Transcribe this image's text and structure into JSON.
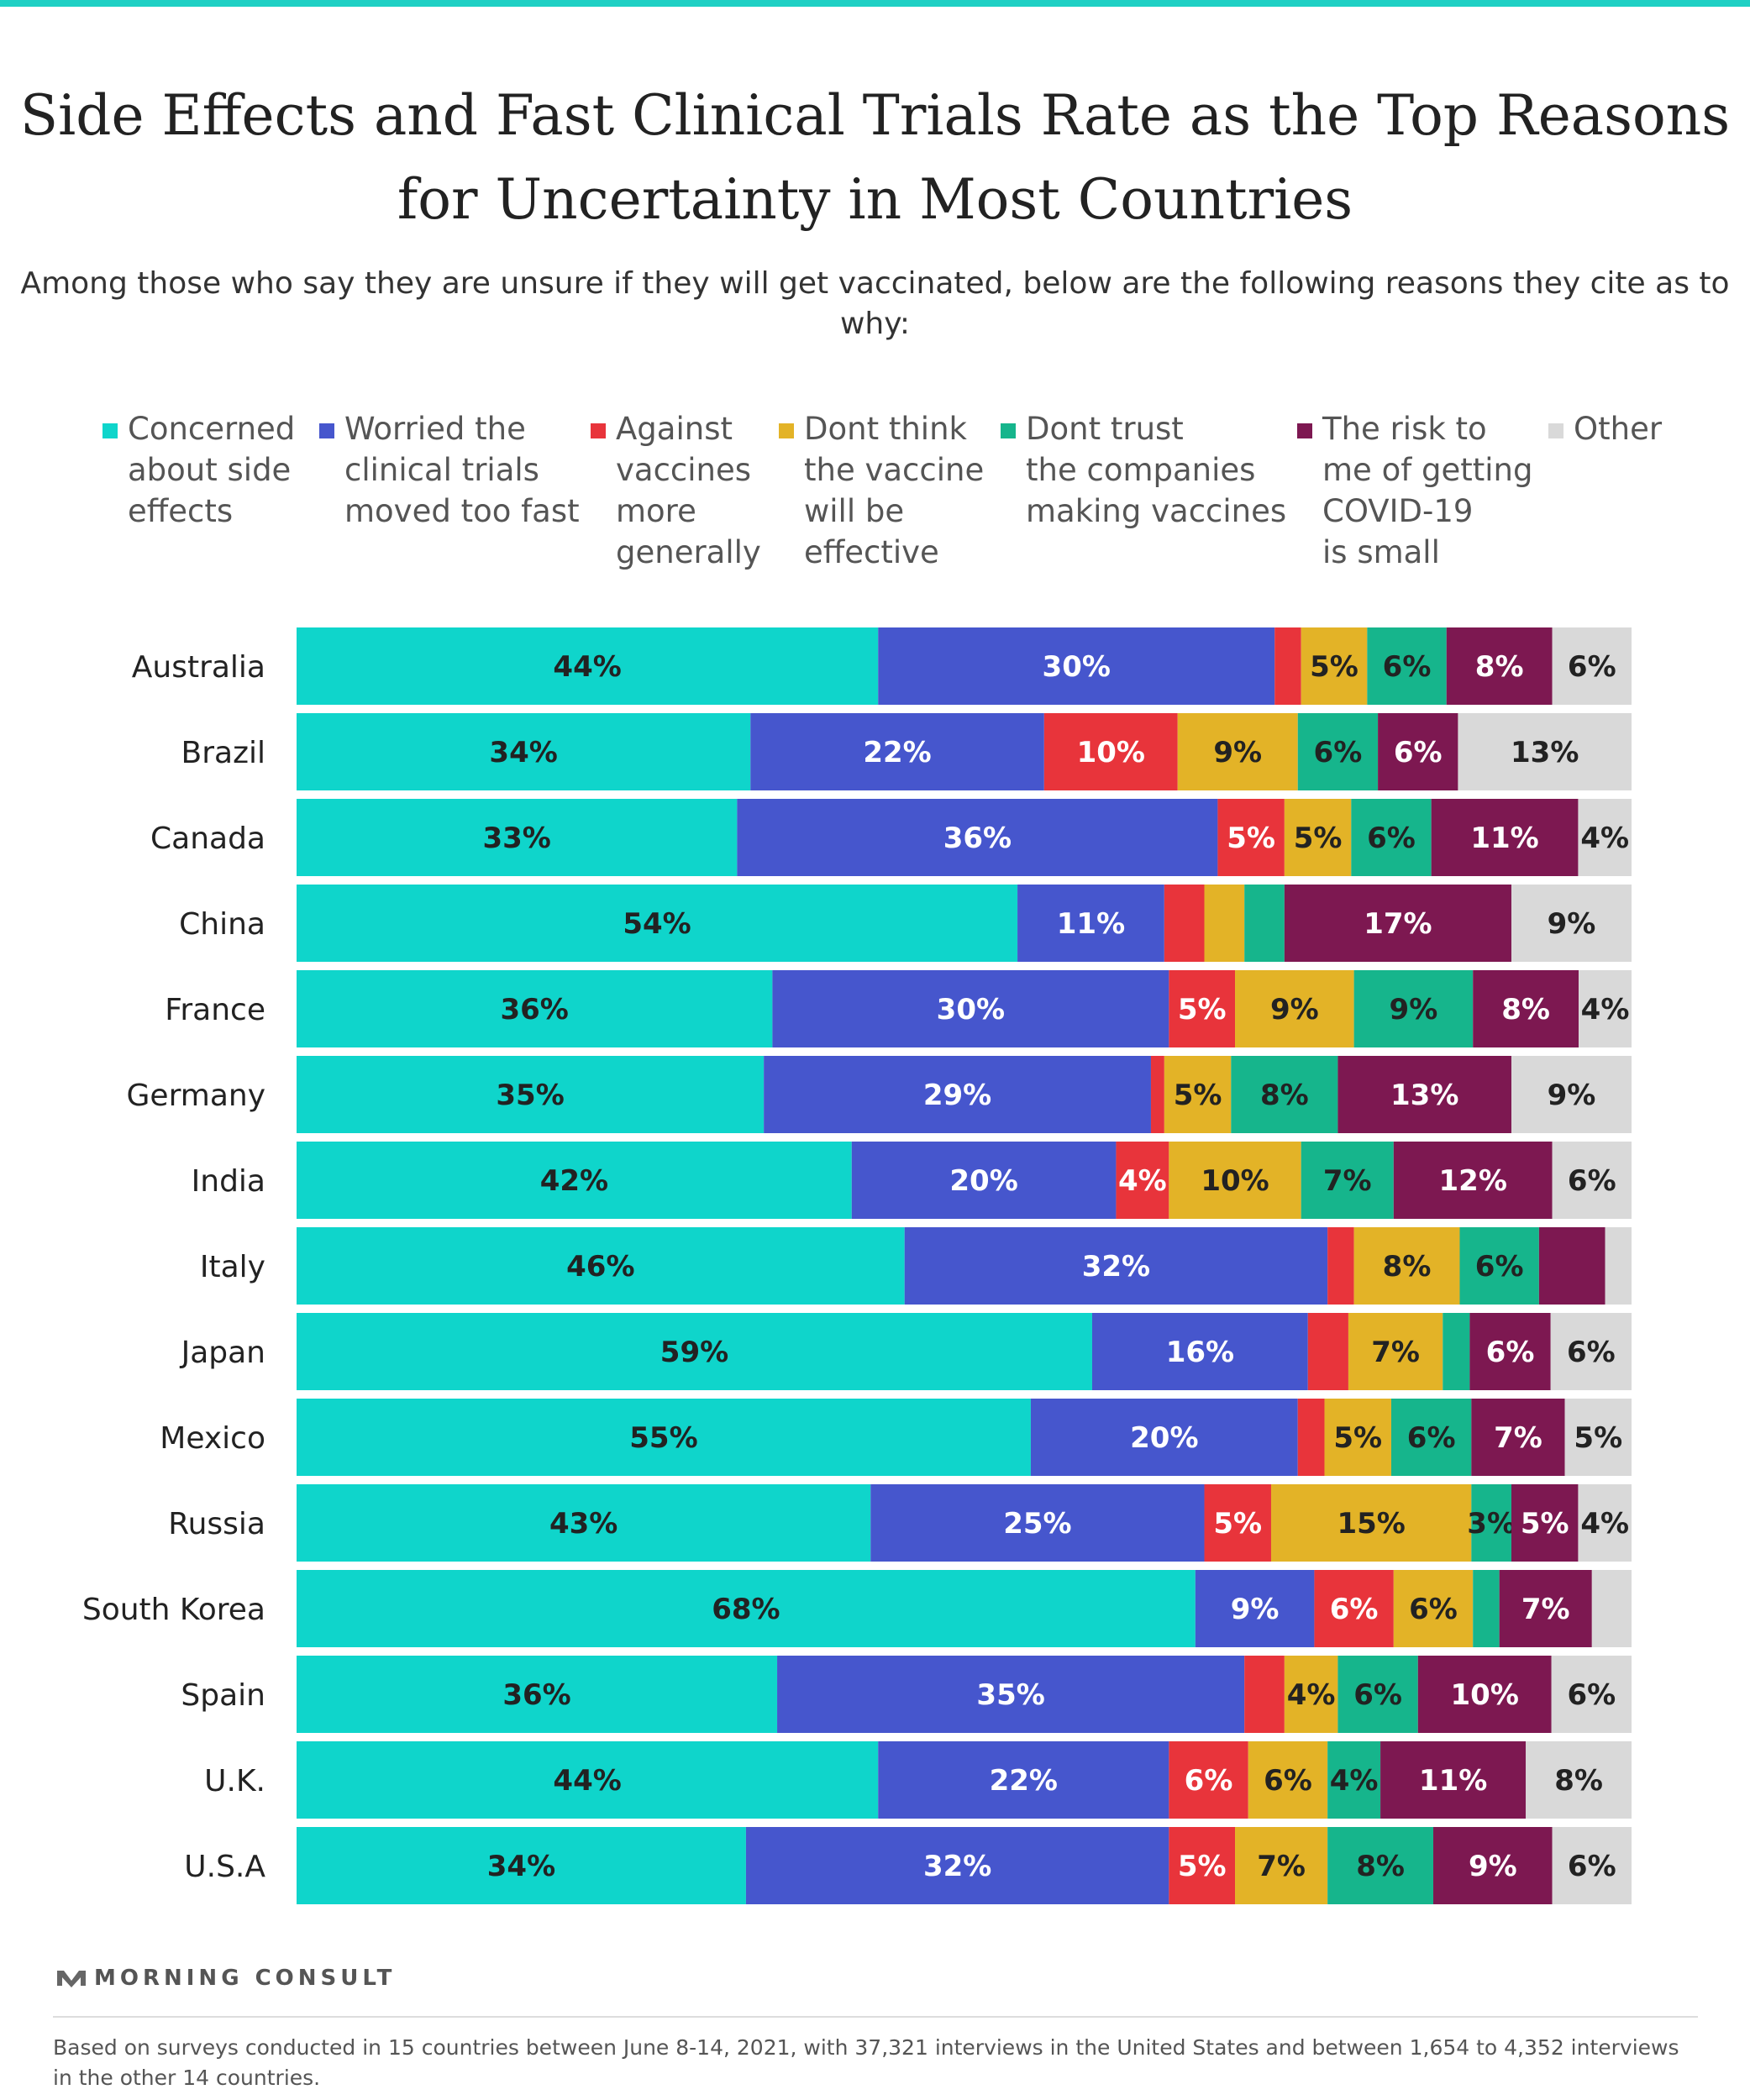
{
  "title": "Side Effects and Fast Clinical Trials Rate as the Top Reasons for Uncertainty in Most Countries",
  "subtitle": "Among those who say they are unsure if they will get vaccinated, below are the following reasons they cite as to why:",
  "brand": "MORNING CONSULT",
  "footnote": "Based on surveys conducted in 15 countries between June 8-14, 2021, with 37,321 interviews in the United States and between 1,654 to 4,352 interviews in the other 14 countries.",
  "chart_data": {
    "type": "bar",
    "orientation": "horizontal",
    "stacked": true,
    "legend_position": "top",
    "categories": [
      "Australia",
      "Brazil",
      "Canada",
      "China",
      "France",
      "Germany",
      "India",
      "Italy",
      "Japan",
      "Mexico",
      "Russia",
      "South Korea",
      "Spain",
      "U.K.",
      "U.S.A"
    ],
    "series": [
      {
        "name": "Concerned about side effects",
        "legend_label": "Concerned\nabout side\neffects",
        "color": "#0fd5cb",
        "label_color": "#222222",
        "values": [
          44,
          34,
          33,
          54,
          36,
          35,
          42,
          46,
          59,
          55,
          43,
          68,
          36,
          44,
          34
        ],
        "labels": [
          "44%",
          "34%",
          "33%",
          "54%",
          "36%",
          "35%",
          "42%",
          "46%",
          "59%",
          "55%",
          "43%",
          "68%",
          "36%",
          "44%",
          "34%"
        ]
      },
      {
        "name": "Worried the clinical trials moved too fast",
        "legend_label": "Worried the\nclinical trials\nmoved too fast",
        "color": "#4656cd",
        "label_color": "#ffffff",
        "values": [
          30,
          22,
          36,
          11,
          30,
          29,
          20,
          32,
          16,
          20,
          25,
          9,
          35,
          22,
          32
        ],
        "labels": [
          "30%",
          "22%",
          "36%",
          "11%",
          "30%",
          "29%",
          "20%",
          "32%",
          "16%",
          "20%",
          "25%",
          "9%",
          "35%",
          "22%",
          "32%"
        ]
      },
      {
        "name": "Against vaccines more generally",
        "legend_label": "Against\nvaccines\nmore\ngenerally",
        "color": "#e8343b",
        "label_color": "#ffffff",
        "values": [
          2,
          10,
          5,
          3,
          5,
          1,
          4,
          2,
          3,
          2,
          5,
          6,
          3,
          6,
          5
        ],
        "labels": [
          "",
          "10%",
          "5%",
          "",
          "5%",
          "",
          "4%",
          "",
          "",
          "",
          "5%",
          "6%",
          "",
          "6%",
          "5%"
        ]
      },
      {
        "name": "Dont think the vaccine will be effective",
        "legend_label": "Dont think\nthe vaccine\nwill be\neffective",
        "color": "#e3b327",
        "label_color": "#222222",
        "values": [
          5,
          9,
          5,
          3,
          9,
          5,
          10,
          8,
          7,
          5,
          15,
          6,
          4,
          6,
          7
        ],
        "labels": [
          "5%",
          "9%",
          "5%",
          "",
          "9%",
          "5%",
          "10%",
          "8%",
          "7%",
          "5%",
          "15%",
          "6%",
          "4%",
          "6%",
          "7%"
        ]
      },
      {
        "name": "Dont trust the companies making vaccines",
        "legend_label": "Dont trust\nthe companies\nmaking vaccines",
        "color": "#16b58c",
        "label_color": "#222222",
        "values": [
          6,
          6,
          6,
          3,
          9,
          8,
          7,
          6,
          2,
          6,
          3,
          2,
          6,
          4,
          8
        ],
        "labels": [
          "6%",
          "6%",
          "6%",
          "",
          "9%",
          "8%",
          "7%",
          "6%",
          "",
          "6%",
          "3%",
          "",
          "6%",
          "4%",
          "8%"
        ]
      },
      {
        "name": "The risk to me of getting COVID-19 is small",
        "legend_label": "The risk to\nme of getting\nCOVID-19\nis small",
        "color": "#7d1851",
        "label_color": "#ffffff",
        "values": [
          8,
          6,
          11,
          17,
          8,
          13,
          12,
          5,
          6,
          7,
          5,
          7,
          10,
          11,
          9
        ],
        "labels": [
          "8%",
          "6%",
          "11%",
          "17%",
          "8%",
          "13%",
          "12%",
          "",
          "6%",
          "7%",
          "5%",
          "7%",
          "10%",
          "11%",
          "9%"
        ]
      },
      {
        "name": "Other",
        "legend_label": "Other",
        "color": "#d9d9d9",
        "label_color": "#222222",
        "values": [
          6,
          13,
          4,
          9,
          4,
          9,
          6,
          2,
          6,
          5,
          4,
          3,
          6,
          8,
          6
        ],
        "labels": [
          "6%",
          "13%",
          "4%",
          "9%",
          "4%",
          "9%",
          "6%",
          "",
          "6%",
          "5%",
          "4%",
          "",
          "6%",
          "8%",
          "6%"
        ]
      }
    ]
  }
}
